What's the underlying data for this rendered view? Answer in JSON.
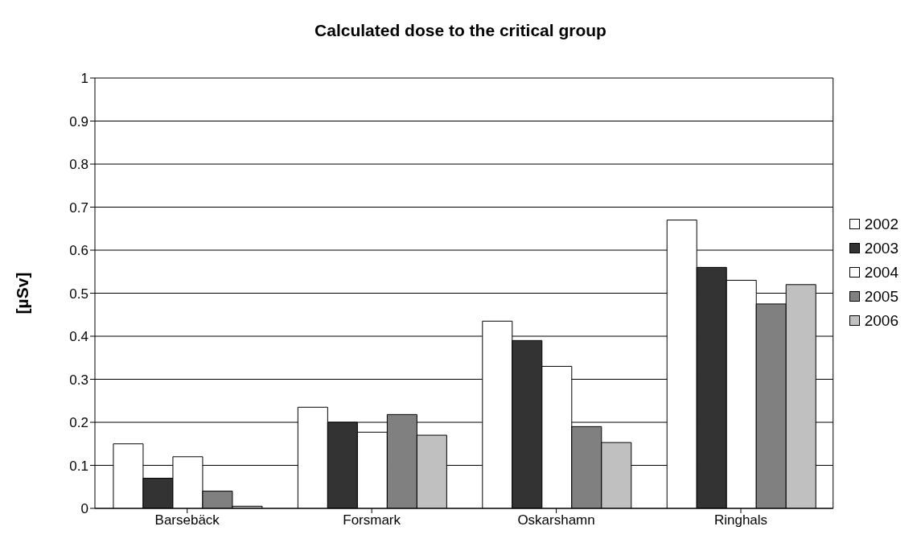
{
  "chart_data": {
    "type": "bar",
    "title": "Calculated dose to the critical group",
    "ylabel": "[µSv]",
    "categories": [
      "Barsebäck",
      "Forsmark",
      "Oskarshamn",
      "Ringhals"
    ],
    "series": [
      {
        "name": "2002",
        "color": "#ffffff",
        "values": [
          0.15,
          0.235,
          0.435,
          0.67
        ]
      },
      {
        "name": "2003",
        "color": "#333333",
        "values": [
          0.07,
          0.2,
          0.39,
          0.56
        ]
      },
      {
        "name": "2004",
        "color": "#ffffff",
        "values": [
          0.12,
          0.177,
          0.33,
          0.53
        ]
      },
      {
        "name": "2005",
        "color": "#808080",
        "values": [
          0.04,
          0.218,
          0.19,
          0.475
        ]
      },
      {
        "name": "2006",
        "color": "#c0c0c0",
        "values": [
          0.005,
          0.17,
          0.153,
          0.52
        ]
      }
    ],
    "ylim": [
      0,
      1
    ],
    "yticks": [
      0,
      0.1,
      0.2,
      0.3,
      0.4,
      0.5,
      0.6,
      0.7,
      0.8,
      0.9,
      1
    ],
    "grid": "y",
    "legend": "right"
  }
}
